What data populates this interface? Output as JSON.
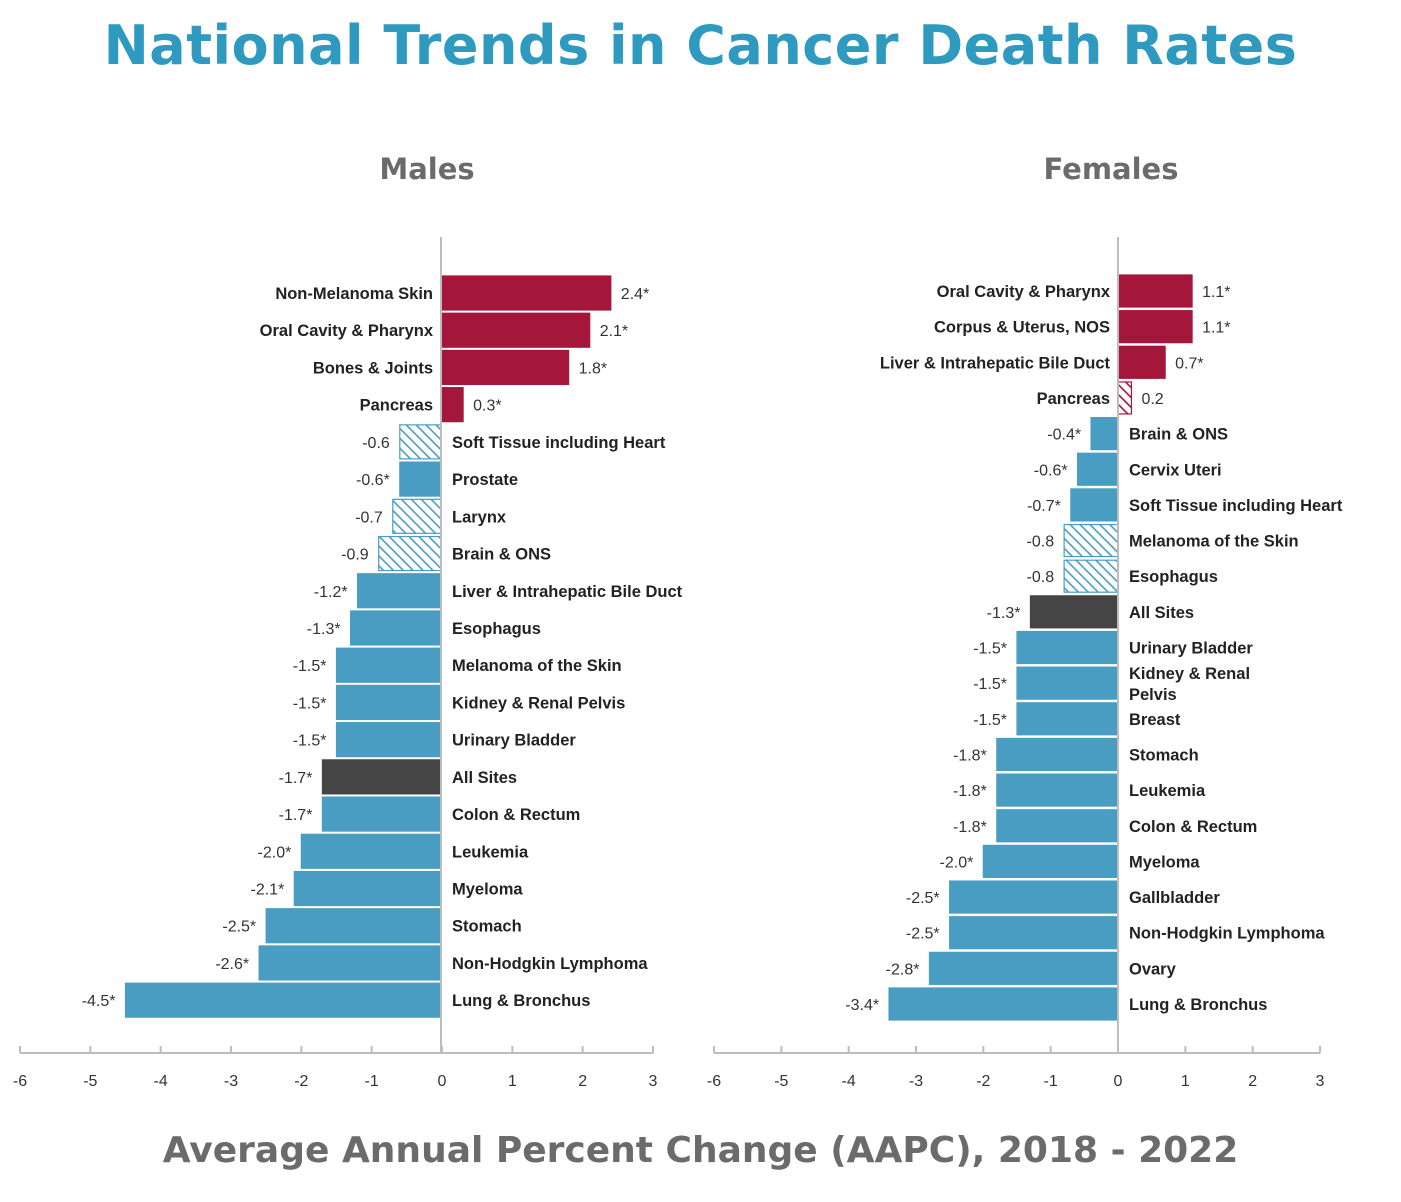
{
  "title": "National Trends in Cancer Death Rates",
  "x_axis_title": "Average Annual Percent Change (AAPC), 2018 - 2022",
  "colors": {
    "title": "#2e9ac0",
    "increase": "#a4173a",
    "decrease": "#4a9dc2",
    "all_sites": "#454545",
    "axis": "#bdbdbd"
  },
  "chart_data": [
    {
      "type": "bar",
      "orientation": "horizontal",
      "title": "Males",
      "xlim": [
        -6,
        3
      ],
      "xticks": [
        -6,
        -5,
        -4,
        -3,
        -2,
        -1,
        0,
        1,
        2,
        3
      ],
      "bars": [
        {
          "category": "Non-Melanoma Skin",
          "value": 2.4,
          "label": "2.4*",
          "style": "increase"
        },
        {
          "category": "Oral Cavity & Pharynx",
          "value": 2.1,
          "label": "2.1*",
          "style": "increase"
        },
        {
          "category": "Bones & Joints",
          "value": 1.8,
          "label": "1.8*",
          "style": "increase"
        },
        {
          "category": "Pancreas",
          "value": 0.3,
          "label": "0.3*",
          "style": "increase"
        },
        {
          "category": "Soft Tissue including Heart",
          "value": -0.6,
          "label": "-0.6",
          "style": "decrease-hatched"
        },
        {
          "category": "Prostate",
          "value": -0.6,
          "label": "-0.6*",
          "style": "decrease"
        },
        {
          "category": "Larynx",
          "value": -0.7,
          "label": "-0.7",
          "style": "decrease-hatched"
        },
        {
          "category": "Brain & ONS",
          "value": -0.9,
          "label": "-0.9",
          "style": "decrease-hatched"
        },
        {
          "category": "Liver & Intrahepatic Bile Duct",
          "value": -1.2,
          "label": "-1.2*",
          "style": "decrease"
        },
        {
          "category": "Esophagus",
          "value": -1.3,
          "label": "-1.3*",
          "style": "decrease"
        },
        {
          "category": "Melanoma of the Skin",
          "value": -1.5,
          "label": "-1.5*",
          "style": "decrease"
        },
        {
          "category": "Kidney & Renal Pelvis",
          "value": -1.5,
          "label": "-1.5*",
          "style": "decrease"
        },
        {
          "category": "Urinary Bladder",
          "value": -1.5,
          "label": "-1.5*",
          "style": "decrease"
        },
        {
          "category": "All Sites",
          "value": -1.7,
          "label": "-1.7*",
          "style": "all_sites"
        },
        {
          "category": "Colon & Rectum",
          "value": -1.7,
          "label": "-1.7*",
          "style": "decrease"
        },
        {
          "category": "Leukemia",
          "value": -2.0,
          "label": "-2.0*",
          "style": "decrease"
        },
        {
          "category": "Myeloma",
          "value": -2.1,
          "label": "-2.1*",
          "style": "decrease"
        },
        {
          "category": "Stomach",
          "value": -2.5,
          "label": "-2.5*",
          "style": "decrease"
        },
        {
          "category": "Non-Hodgkin Lymphoma",
          "value": -2.6,
          "label": "-2.6*",
          "style": "decrease"
        },
        {
          "category": "Lung & Bronchus",
          "value": -4.5,
          "label": "-4.5*",
          "style": "decrease"
        }
      ]
    },
    {
      "type": "bar",
      "orientation": "horizontal",
      "title": "Females",
      "xlim": [
        -6,
        3
      ],
      "xticks": [
        -6,
        -5,
        -4,
        -3,
        -2,
        -1,
        0,
        1,
        2,
        3
      ],
      "bars": [
        {
          "category": "Oral Cavity & Pharynx",
          "value": 1.1,
          "label": "1.1*",
          "style": "increase"
        },
        {
          "category": "Corpus & Uterus, NOS",
          "value": 1.1,
          "label": "1.1*",
          "style": "increase"
        },
        {
          "category": "Liver & Intrahepatic Bile Duct",
          "value": 0.7,
          "label": "0.7*",
          "style": "increase"
        },
        {
          "category": "Pancreas",
          "value": 0.2,
          "label": "0.2",
          "style": "increase-hatched"
        },
        {
          "category": "Brain & ONS",
          "value": -0.4,
          "label": "-0.4*",
          "style": "decrease"
        },
        {
          "category": "Cervix Uteri",
          "value": -0.6,
          "label": "-0.6*",
          "style": "decrease"
        },
        {
          "category": "Soft Tissue including Heart",
          "value": -0.7,
          "label": "-0.7*",
          "style": "decrease"
        },
        {
          "category": "Melanoma of the Skin",
          "value": -0.8,
          "label": "-0.8",
          "style": "decrease-hatched"
        },
        {
          "category": "Esophagus",
          "value": -0.8,
          "label": "-0.8",
          "style": "decrease-hatched"
        },
        {
          "category": "All Sites",
          "value": -1.3,
          "label": "-1.3*",
          "style": "all_sites"
        },
        {
          "category": "Urinary Bladder",
          "value": -1.5,
          "label": "-1.5*",
          "style": "decrease"
        },
        {
          "category": "Kidney & Renal Pelvis",
          "value": -1.5,
          "label": "-1.5*",
          "style": "decrease",
          "label_lines": [
            "Kidney & Renal",
            "Pelvis"
          ]
        },
        {
          "category": "Breast",
          "value": -1.5,
          "label": "-1.5*",
          "style": "decrease"
        },
        {
          "category": "Stomach",
          "value": -1.8,
          "label": "-1.8*",
          "style": "decrease"
        },
        {
          "category": "Leukemia",
          "value": -1.8,
          "label": "-1.8*",
          "style": "decrease"
        },
        {
          "category": "Colon & Rectum",
          "value": -1.8,
          "label": "-1.8*",
          "style": "decrease"
        },
        {
          "category": "Myeloma",
          "value": -2.0,
          "label": "-2.0*",
          "style": "decrease"
        },
        {
          "category": "Gallbladder",
          "value": -2.5,
          "label": "-2.5*",
          "style": "decrease"
        },
        {
          "category": "Non-Hodgkin Lymphoma",
          "value": -2.5,
          "label": "-2.5*",
          "style": "decrease"
        },
        {
          "category": "Ovary",
          "value": -2.8,
          "label": "-2.8*",
          "style": "decrease"
        },
        {
          "category": "Lung & Bronchus",
          "value": -3.4,
          "label": "-3.4*",
          "style": "decrease"
        }
      ]
    }
  ]
}
